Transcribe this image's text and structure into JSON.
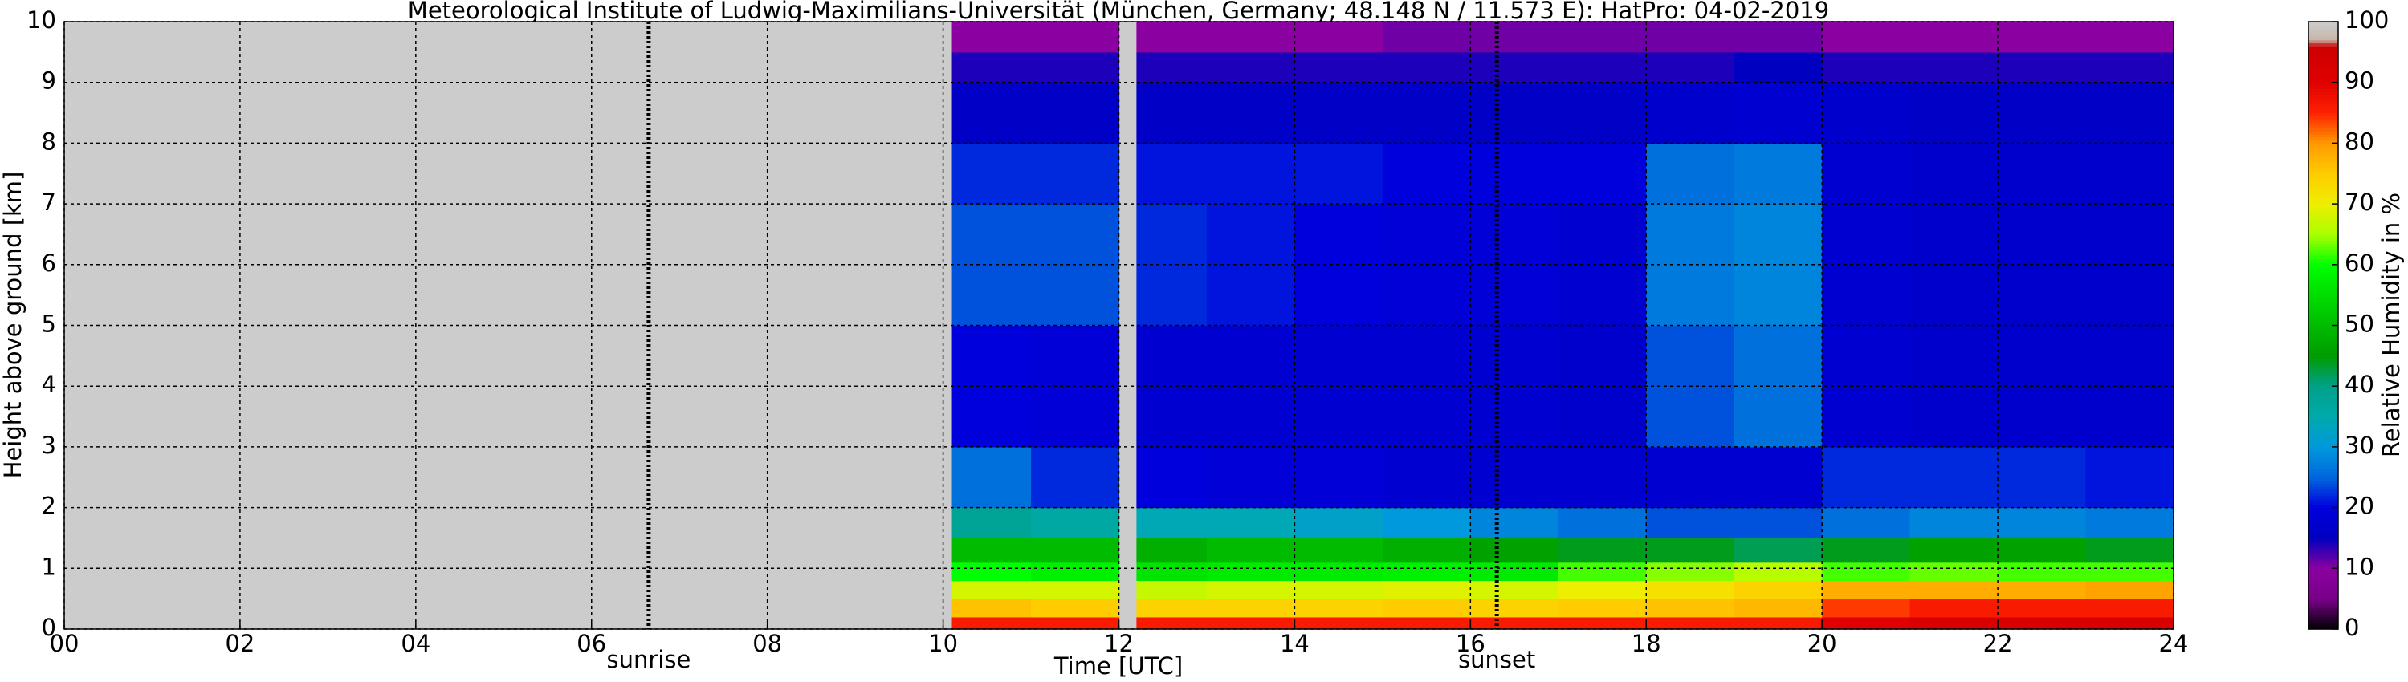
{
  "chart_data": {
    "type": "heatmap",
    "title": "Meteorological Institute of Ludwig-Maximilians-Universität (München, Germany; 48.148 N / 11.573 E):    HatPro: 04-02-2019",
    "xlabel": "Time [UTC]",
    "ylabel": "Height above ground [km]",
    "colorbar_label": "Relative Humidity in %",
    "xlim": [
      0,
      24
    ],
    "ylim": [
      0,
      10
    ],
    "clim": [
      0,
      100
    ],
    "xticks": [
      {
        "value": 0,
        "label": "00"
      },
      {
        "value": 2,
        "label": "02"
      },
      {
        "value": 4,
        "label": "04"
      },
      {
        "value": 6,
        "label": "06"
      },
      {
        "value": 8,
        "label": "08"
      },
      10,
      12,
      14,
      16,
      18,
      20,
      22,
      24
    ],
    "yticks": [
      0,
      1,
      2,
      3,
      4,
      5,
      6,
      7,
      8,
      9,
      10
    ],
    "cticks": [
      0,
      10,
      20,
      30,
      40,
      50,
      60,
      70,
      80,
      90,
      100
    ],
    "grid": true,
    "missing_color": "#cccccc",
    "colormap": [
      [
        0,
        "#000000"
      ],
      [
        5,
        "#780088"
      ],
      [
        10,
        "#8a00a0"
      ],
      [
        15,
        "#0000c0"
      ],
      [
        20,
        "#0000dd"
      ],
      [
        25,
        "#0066dd"
      ],
      [
        30,
        "#0099dd"
      ],
      [
        35,
        "#00aaaa"
      ],
      [
        40,
        "#00a08a"
      ],
      [
        45,
        "#009c00"
      ],
      [
        50,
        "#00bb00"
      ],
      [
        55,
        "#00dd00"
      ],
      [
        60,
        "#00ff00"
      ],
      [
        65,
        "#aaff00"
      ],
      [
        70,
        "#eeee00"
      ],
      [
        75,
        "#ffcc00"
      ],
      [
        80,
        "#ff9900"
      ],
      [
        85,
        "#ff2200"
      ],
      [
        90,
        "#e00000"
      ],
      [
        96,
        "#cc0000"
      ],
      [
        97,
        "#c8b4a8"
      ],
      [
        100,
        "#cccccc"
      ]
    ],
    "annotations": [
      {
        "label": "sunrise",
        "x": 6.65
      },
      {
        "label": "sunset",
        "x": 16.3
      }
    ],
    "x_edges": [
      10.1,
      11,
      12,
      12.2,
      13,
      14,
      15,
      16,
      17,
      18,
      19,
      20,
      21,
      22,
      23,
      24
    ],
    "y_edges": [
      0,
      0.2,
      0.5,
      0.8,
      1.1,
      1.5,
      2,
      3,
      5,
      7,
      8,
      9,
      9.5,
      10
    ],
    "z": [
      [
        86,
        86,
        null,
        86,
        86,
        86,
        86,
        86,
        86,
        86,
        86,
        90,
        92,
        92,
        92
      ],
      [
        76,
        75,
        null,
        74,
        74,
        74,
        75,
        74,
        75,
        76,
        77,
        84,
        86,
        86,
        86
      ],
      [
        68,
        68,
        null,
        67,
        68,
        68,
        69,
        68,
        70,
        72,
        74,
        78,
        78,
        78,
        79
      ],
      [
        60,
        58,
        null,
        56,
        57,
        57,
        58,
        57,
        62,
        64,
        66,
        62,
        63,
        62,
        62
      ],
      [
        50,
        50,
        null,
        48,
        50,
        50,
        48,
        46,
        44,
        44,
        42,
        44,
        46,
        46,
        44
      ],
      [
        38,
        36,
        null,
        34,
        34,
        32,
        30,
        28,
        26,
        24,
        24,
        26,
        28,
        28,
        27
      ],
      [
        26,
        22,
        null,
        20,
        19,
        19,
        18,
        18,
        18,
        18,
        18,
        22,
        22,
        22,
        21
      ],
      [
        20,
        19,
        null,
        18,
        18,
        18,
        18,
        18,
        17,
        24,
        26,
        18,
        17,
        17,
        17
      ],
      [
        24,
        24,
        null,
        22,
        21,
        20,
        19,
        19,
        18,
        27,
        28,
        18,
        17,
        17,
        17
      ],
      [
        22,
        22,
        null,
        21,
        21,
        21,
        20,
        20,
        20,
        26,
        27,
        18,
        17,
        17,
        17
      ],
      [
        16,
        16,
        null,
        16,
        16,
        16,
        16,
        16,
        16,
        17,
        18,
        17,
        16,
        16,
        16
      ],
      [
        14,
        14,
        null,
        14,
        14,
        14,
        14,
        14,
        14,
        14,
        15,
        14,
        14,
        14,
        14
      ],
      [
        10,
        10,
        null,
        10,
        10,
        10,
        11,
        11,
        11,
        11,
        11,
        10,
        10,
        10,
        10
      ]
    ]
  }
}
